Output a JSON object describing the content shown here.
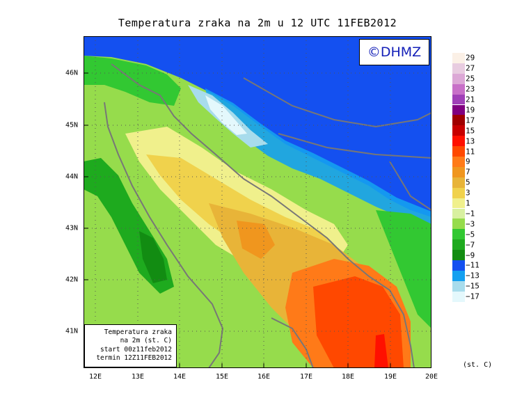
{
  "title": "Temperatura zraka na 2m u 12 UTC 11FEB2012",
  "logo": "©DHMZ",
  "info": {
    "line1": "Temperatura zraka",
    "line2": "na 2m (st. C)",
    "line3": "start 00z11feb2012",
    "line4": "termin 12Z11FEB2012"
  },
  "map": {
    "lat_labels": [
      "46N",
      "45N",
      "44N",
      "43N",
      "42N",
      "41N"
    ],
    "lon_labels": [
      "12E",
      "13E",
      "14E",
      "15E",
      "16E",
      "17E",
      "18E",
      "19E",
      "20E"
    ],
    "colors": {
      "coastline": "#777777",
      "grid": "#555555"
    }
  },
  "legend": {
    "unit": "(st. C)",
    "labels": [
      "29",
      "27",
      "25",
      "23",
      "21",
      "19",
      "17",
      "15",
      "13",
      "11",
      "9",
      "7",
      "5",
      "3",
      "1",
      "−1",
      "−3",
      "−5",
      "−7",
      "−9",
      "−11",
      "−13",
      "−15",
      "−17"
    ],
    "colors": [
      "#fbf0e6",
      "#e8cce0",
      "#dca8d6",
      "#c870c8",
      "#a040b8",
      "#800080",
      "#a00000",
      "#c80000",
      "#ff1000",
      "#ff4800",
      "#ff7a18",
      "#f0961e",
      "#e8b438",
      "#f0d24c",
      "#f0f08c",
      "#d8f0a0",
      "#96dc4c",
      "#32c832",
      "#1eaa1e",
      "#128c12",
      "#1450f0",
      "#14a0f0",
      "#a8dcec",
      "#e4f8fc"
    ]
  }
}
